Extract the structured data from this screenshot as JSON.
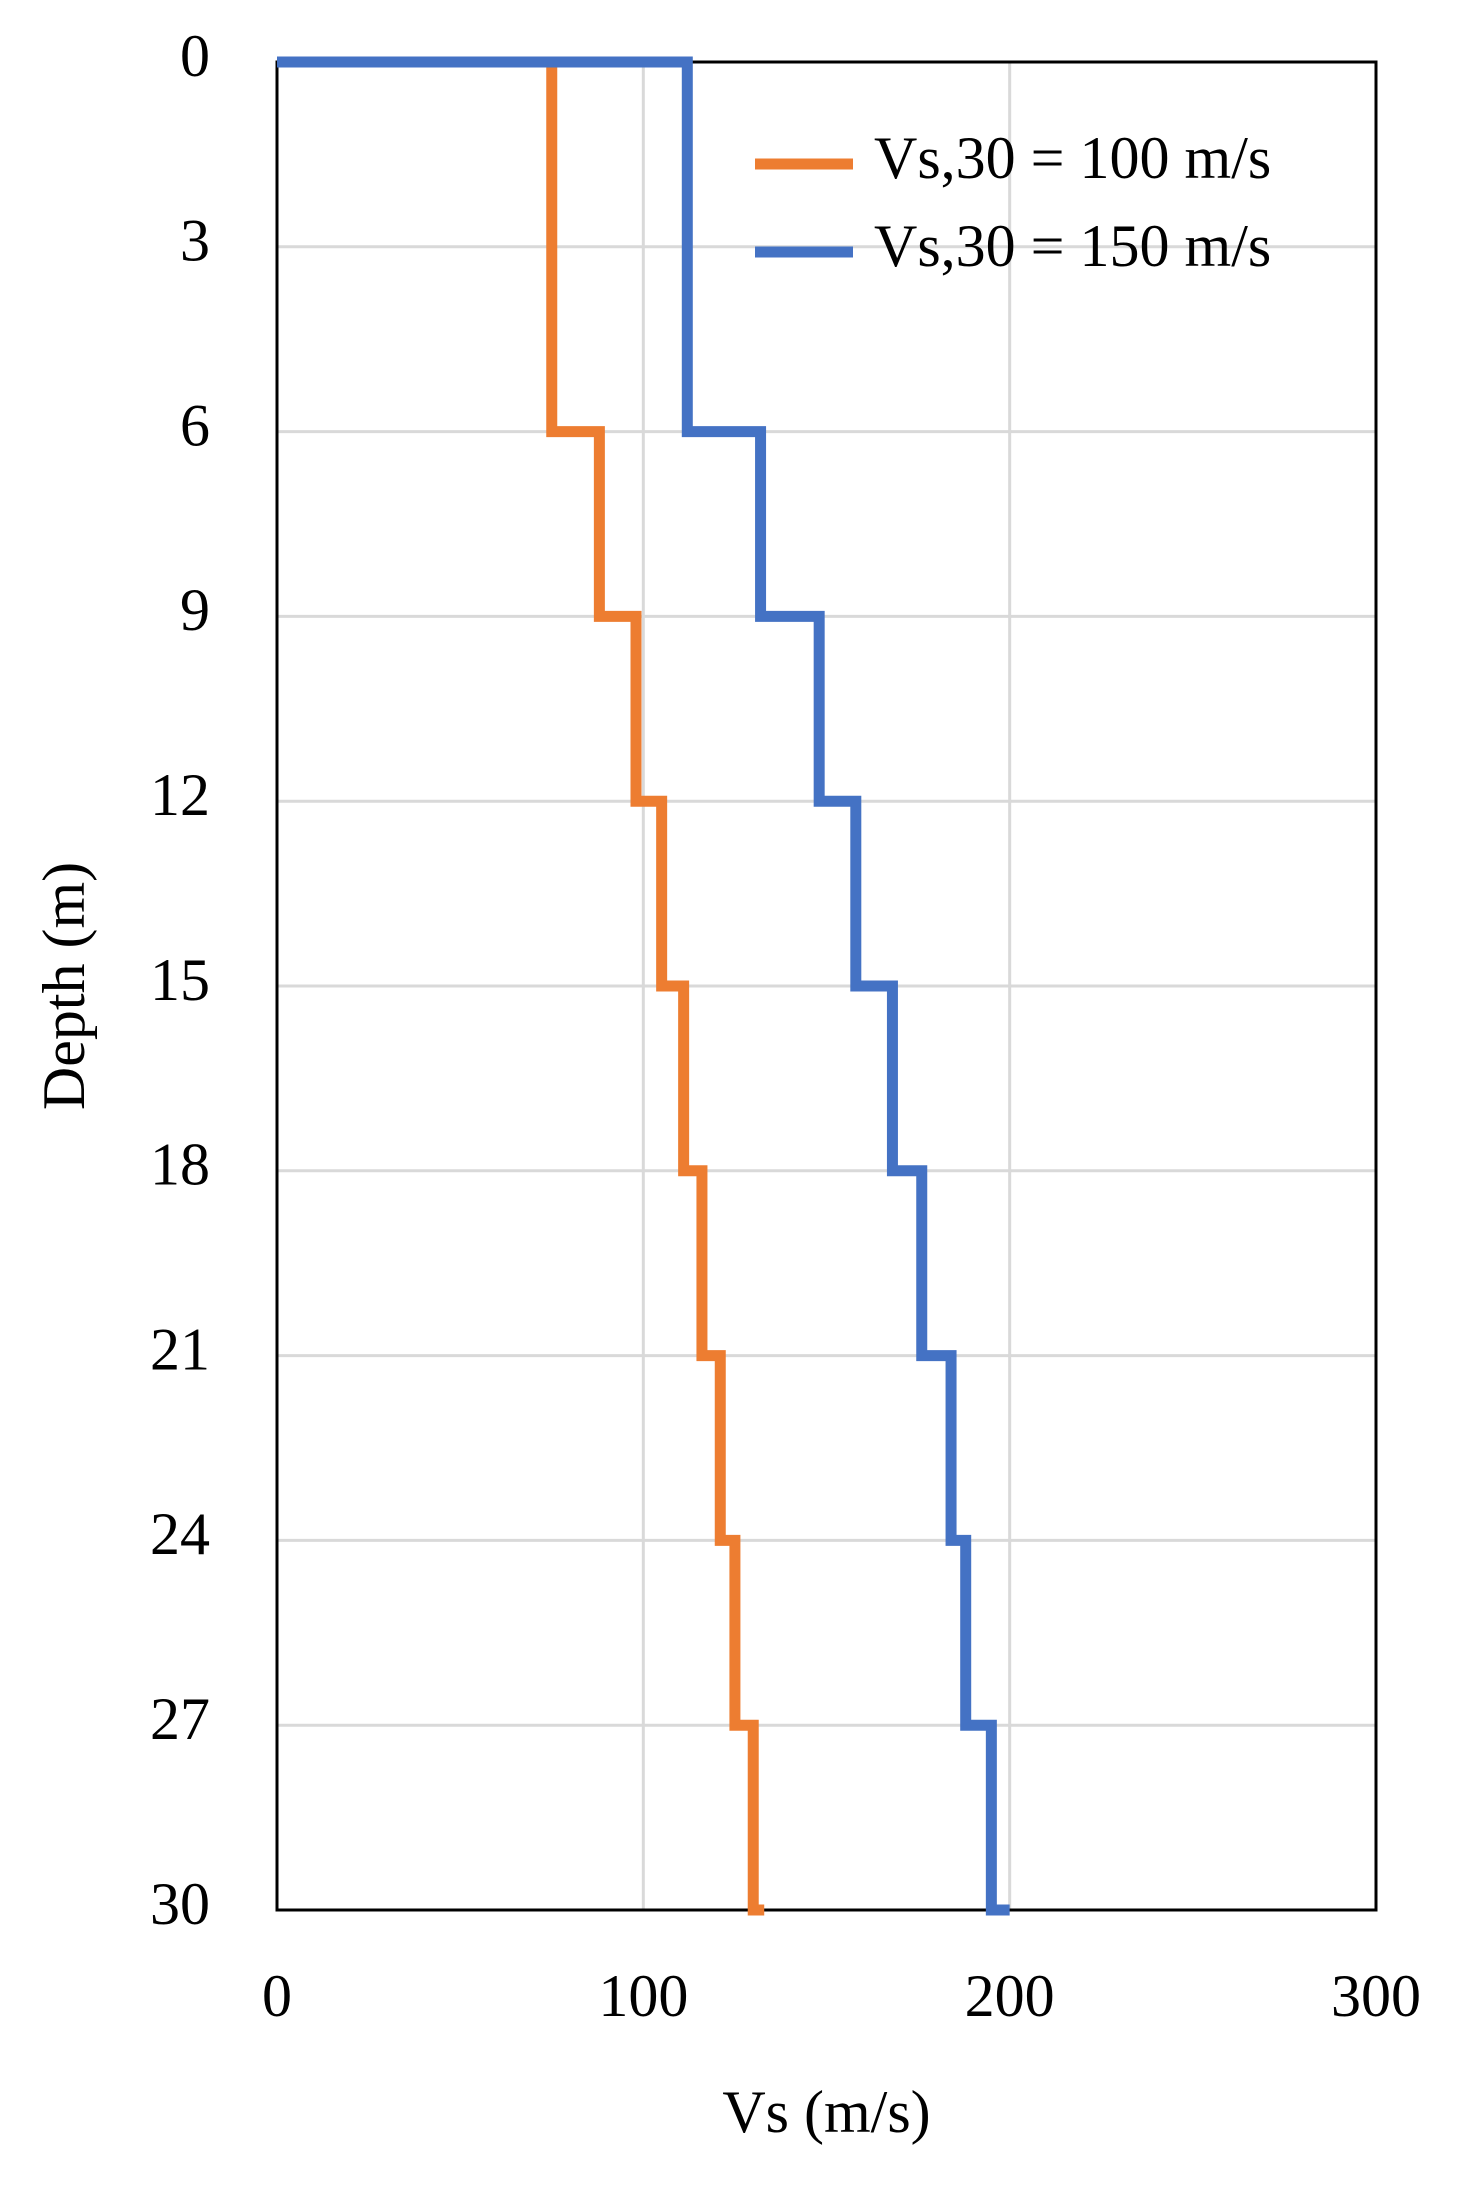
{
  "chart_data": {
    "type": "line",
    "xlabel": "Vs (m/s)",
    "ylabel": "Depth (m)",
    "xlim": [
      0,
      300
    ],
    "xticks": [
      0,
      100,
      200,
      300
    ],
    "ylim": [
      0,
      30
    ],
    "yticks": [
      0,
      3,
      6,
      9,
      12,
      15,
      18,
      21,
      24,
      27,
      30
    ],
    "y_inverted": true,
    "grid": true,
    "legend": "upper right",
    "series": [
      {
        "name": "Vs,30 = 100 m/s",
        "color": "#ED7D31",
        "x": [
          75,
          75,
          88,
          88,
          98,
          98,
          105,
          105,
          111,
          111,
          116,
          116,
          121,
          121,
          125,
          125,
          130,
          130,
          133
        ],
        "y": [
          0,
          6,
          6,
          9,
          9,
          12,
          12,
          15,
          15,
          18,
          18,
          21,
          21,
          24,
          24,
          27,
          27,
          30,
          30
        ]
      },
      {
        "name": "Vs,30 = 150 m/s",
        "color": "#4472C4",
        "x": [
          0,
          112,
          112,
          132,
          132,
          148,
          148,
          158,
          158,
          168,
          168,
          176,
          176,
          184,
          184,
          188,
          188,
          195,
          195,
          200
        ],
        "y": [
          0,
          0,
          6,
          6,
          9,
          9,
          12,
          12,
          15,
          15,
          18,
          18,
          21,
          21,
          24,
          24,
          27,
          27,
          30,
          30
        ]
      }
    ]
  }
}
